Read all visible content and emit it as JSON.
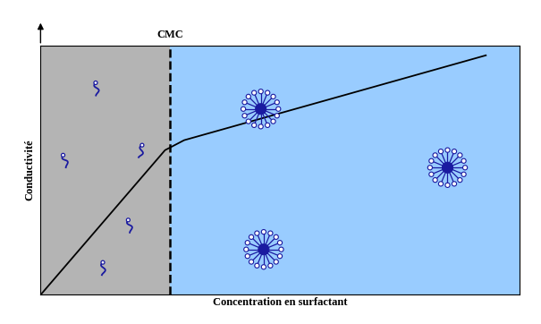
{
  "chart_data": {
    "type": "line",
    "x": [
      0,
      26,
      30,
      93
    ],
    "values": [
      0,
      58,
      62,
      96
    ],
    "color": "#000000",
    "xlim": [
      0,
      100
    ],
    "ylim": [
      0,
      100
    ],
    "xlabel": "Concentration en surfactant",
    "ylabel": "Conductivité",
    "annotations": [
      {
        "text": "CMC",
        "x": 27
      }
    ],
    "tick_labels": false
  }
}
